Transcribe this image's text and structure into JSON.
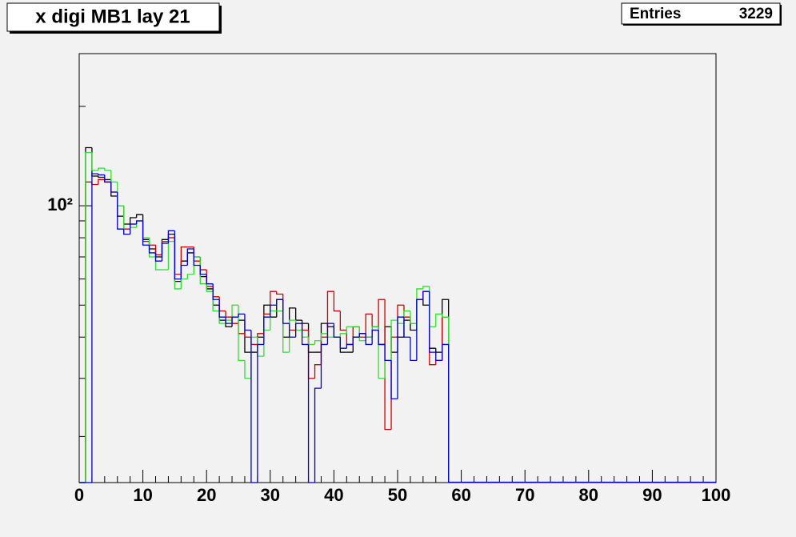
{
  "chart_data": {
    "type": "histogram",
    "title": "x digi MB1 lay 21",
    "stats": {
      "label": "Entries",
      "value": 3229
    },
    "bins": [
      0,
      1,
      2,
      3,
      4,
      5,
      6,
      7,
      8,
      9,
      10,
      11,
      12,
      13,
      14,
      15,
      16,
      17,
      18,
      19,
      20,
      21,
      22,
      23,
      24,
      25,
      26,
      27,
      28,
      29,
      30,
      31,
      32,
      33,
      34,
      35,
      36,
      37,
      38,
      39,
      40,
      41,
      42,
      43,
      44,
      45,
      46,
      47,
      48,
      49,
      50,
      51,
      52,
      53,
      54,
      55,
      56,
      57,
      58
    ],
    "series": [
      {
        "color": "#000000",
        "values": [
          0,
          150,
          123,
          122,
          120,
          107,
          93,
          88,
          92,
          94,
          79,
          74,
          70,
          79,
          82,
          59,
          68,
          72,
          70,
          61,
          56,
          50,
          45,
          43,
          44,
          45,
          36,
          36,
          40,
          50,
          46,
          52,
          40,
          49,
          45,
          44,
          36,
          36,
          44,
          43,
          40,
          36,
          36,
          40,
          41,
          40,
          43,
          38,
          43,
          36,
          40,
          45,
          42,
          52,
          50,
          37,
          36,
          52
        ]
      },
      {
        "color": "#cc0000",
        "values": [
          0,
          118,
          116,
          120,
          118,
          110,
          100,
          85,
          88,
          90,
          78,
          76,
          71,
          78,
          80,
          62,
          75,
          75,
          68,
          64,
          57,
          53,
          48,
          46,
          44,
          41,
          40,
          38,
          41,
          47,
          55,
          54,
          44,
          42,
          44,
          42,
          30,
          33,
          40,
          55,
          48,
          42,
          38,
          43,
          40,
          47,
          42,
          52,
          21,
          40,
          50,
          46,
          44,
          52,
          55,
          33,
          34,
          46
        ]
      },
      {
        "color": "#33dd33",
        "values": [
          0,
          145,
          128,
          130,
          128,
          118,
          100,
          82,
          86,
          90,
          80,
          70,
          64,
          64,
          78,
          56,
          60,
          62,
          70,
          58,
          55,
          48,
          44,
          45,
          50,
          34,
          30,
          40,
          35,
          42,
          48,
          48,
          36,
          45,
          42,
          40,
          38,
          39,
          41,
          40,
          40,
          41,
          43,
          43,
          39,
          40,
          43,
          30,
          34,
          45,
          44,
          48,
          44,
          56,
          57,
          43,
          47,
          46
        ]
      },
      {
        "color": "#0000cc",
        "values": [
          0,
          0,
          125,
          124,
          118,
          110,
          85,
          82,
          88,
          90,
          76,
          72,
          68,
          77,
          84,
          60,
          66,
          74,
          66,
          62,
          58,
          52,
          46,
          44,
          46,
          47,
          42,
          0,
          38,
          46,
          50,
          52,
          44,
          40,
          44,
          38,
          0,
          28,
          38,
          44,
          40,
          37,
          38,
          40,
          41,
          38,
          42,
          38,
          34,
          26,
          46,
          40,
          34,
          52,
          55,
          36,
          34,
          38
        ]
      }
    ],
    "xlim": [
      0,
      100
    ],
    "xticks": [
      0,
      10,
      20,
      30,
      40,
      50,
      60,
      70,
      80,
      90,
      100
    ],
    "xminorticks": [
      2,
      4,
      6,
      8,
      12,
      14,
      16,
      18,
      22,
      24,
      26,
      28,
      32,
      34,
      36,
      38,
      42,
      44,
      46,
      48,
      52,
      54,
      56,
      58,
      62,
      64,
      66,
      68,
      72,
      74,
      76,
      78,
      82,
      84,
      86,
      88,
      92,
      94,
      96,
      98
    ],
    "ylim": [
      14.5,
      289
    ],
    "log_y": true,
    "yticks": [
      {
        "value": 100,
        "label": "10²"
      }
    ],
    "yminorticks": [
      20,
      30,
      40,
      50,
      60,
      70,
      80,
      90,
      200
    ]
  }
}
